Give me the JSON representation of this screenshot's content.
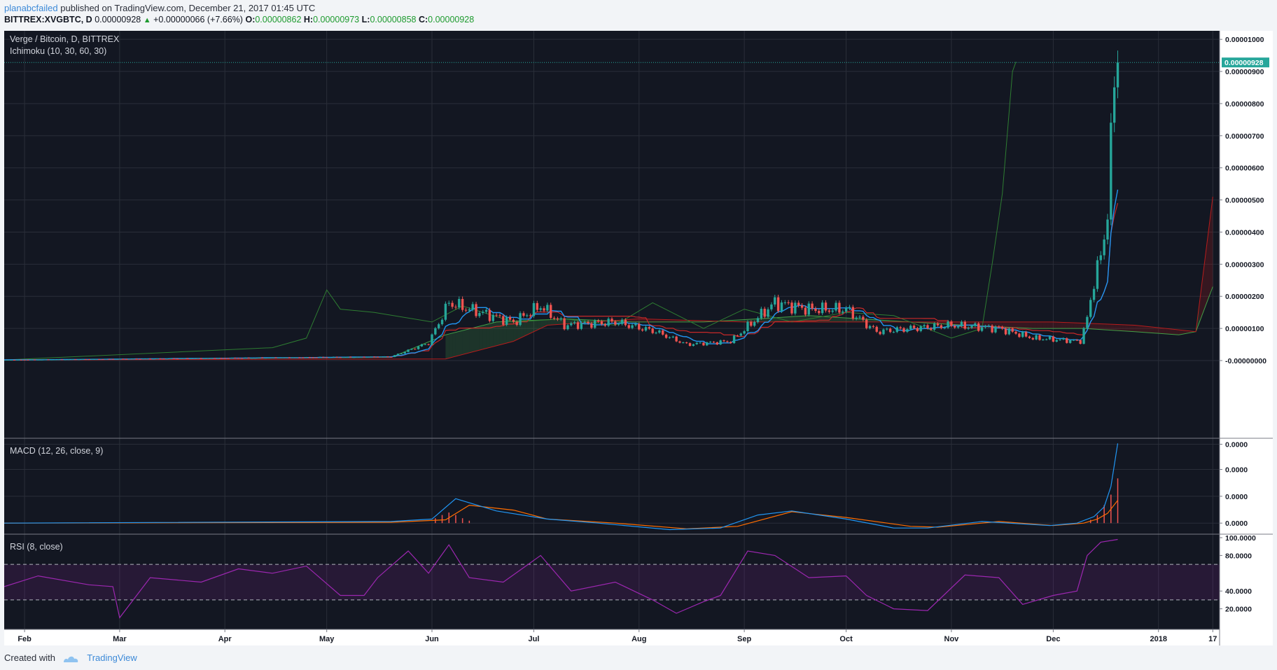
{
  "header": {
    "author": "planabcfailed",
    "published": "published on TradingView.com, December 21, 2017 01:45 UTC",
    "symbol": "BITTREX:XVGBTC, D",
    "last": "0.00000928",
    "change": "+0.00000066 (+7.66%)",
    "o_label": "O:",
    "o_value": "0.00000862",
    "h_label": "H:",
    "h_value": "0.00000973",
    "l_label": "L:",
    "l_value": "0.00000858",
    "c_label": "C:",
    "c_value": "0.00000928"
  },
  "footer": {
    "created": "Created with",
    "brand": "TradingView"
  },
  "colors": {
    "background": "#131722",
    "grid": "#2a2e39",
    "up": "#26a69a",
    "down": "#ef5350",
    "tenkan": "#2196f3",
    "kijun": "#c62828",
    "lead_a": "#43a047",
    "lead_b": "#b71c1c",
    "lagging": "#2e7d32",
    "macd": "#2196f3",
    "signal": "#ff6d00",
    "rsi": "#9c27b0",
    "price_tag": "#26a69a"
  },
  "chart_data": [
    {
      "id": "price",
      "type": "candlestick",
      "title": "Verge / Bitcoin, D, BITTREX",
      "indicator": "Ichimoku (10, 30, 60, 30)",
      "ylim": [
        0,
        1.02e-05
      ],
      "yticks": [
        "-0.00000000",
        "0.00000100",
        "0.00000200",
        "0.00000300",
        "0.00000400",
        "0.00000500",
        "0.00000600",
        "0.00000700",
        "0.00000800",
        "0.00000900",
        "0.00001000"
      ],
      "ytick_values": [
        0,
        1e-06,
        2e-06,
        3e-06,
        4e-06,
        5e-06,
        6e-06,
        7e-06,
        8e-06,
        9e-06,
        1e-05
      ],
      "last_price_label": "0.00000928",
      "last_price": 9.28e-06,
      "anchors": {
        "dates": [
          "2017-01-26",
          "2017-05-20",
          "2017-05-31",
          "2017-06-06",
          "2017-06-12",
          "2017-06-25",
          "2017-07-03",
          "2017-07-10",
          "2017-07-25",
          "2017-08-06",
          "2017-08-15",
          "2017-08-28",
          "2017-09-10",
          "2017-09-20",
          "2017-10-01",
          "2017-10-10",
          "2017-10-20",
          "2017-11-01",
          "2017-11-15",
          "2017-11-25",
          "2017-12-09",
          "2017-12-11",
          "2017-12-13",
          "2017-12-15",
          "2017-12-17",
          "2017-12-19",
          "2017-12-20"
        ],
        "closes": [
          2e-08,
          1.2e-07,
          5.5e-07,
          1.8e-06,
          1.6e-06,
          1.2e-06,
          1.7e-06,
          1.1e-06,
          1.2e-06,
          9e-07,
          5e-07,
          6e-07,
          1.8e-06,
          1.6e-06,
          1.6e-06,
          9e-07,
          1e-06,
          1.1e-06,
          1e-06,
          7e-07,
          6e-07,
          1.3e-06,
          2.5e-06,
          3.2e-06,
          4.7e-06,
          8.6e-06,
          9.28e-06
        ]
      },
      "ichimoku": {
        "lead_a": {
          "dates": [
            "2017-01-26",
            "2017-05-20",
            "2017-06-05",
            "2017-06-20",
            "2017-07-10",
            "2017-07-30",
            "2017-08-20",
            "2017-09-05",
            "2017-09-20",
            "2017-10-05",
            "2017-10-20",
            "2017-11-05",
            "2017-11-25",
            "2017-12-10",
            "2017-12-25",
            "2018-01-07",
            "2018-01-12",
            "2018-01-17"
          ],
          "values": [
            2e-08,
            1e-07,
            8e-07,
            1.2e-06,
            1.3e-06,
            1.2e-06,
            1.2e-06,
            1.3e-06,
            1.4e-06,
            1.3e-06,
            1.2e-06,
            1.1e-06,
            1e-06,
            1e-06,
            9e-07,
            8e-07,
            9e-07,
            2.3e-06
          ]
        },
        "lead_b": {
          "dates": [
            "2017-01-26",
            "2017-06-05",
            "2017-06-25",
            "2017-07-05",
            "2017-08-01",
            "2017-09-01",
            "2017-10-01",
            "2017-11-01",
            "2017-12-01",
            "2017-12-25",
            "2018-01-12",
            "2018-01-17"
          ],
          "values": [
            2e-08,
            5e-08,
            6e-07,
            1.1e-06,
            1.3e-06,
            1.2e-06,
            1.2e-06,
            1.2e-06,
            1.2e-06,
            1.1e-06,
            9e-07,
            5.1e-06
          ]
        },
        "lagging": {
          "dates": [
            "2017-01-26",
            "2017-04-15",
            "2017-04-25",
            "2017-05-01",
            "2017-05-05",
            "2017-05-15",
            "2017-06-01",
            "2017-06-10",
            "2017-06-25",
            "2017-07-10",
            "2017-07-25",
            "2017-08-05",
            "2017-08-20",
            "2017-09-01",
            "2017-09-15",
            "2017-10-01",
            "2017-10-15",
            "2017-11-01",
            "2017-11-10",
            "2017-11-13",
            "2017-11-16",
            "2017-11-19",
            "2017-11-20"
          ],
          "values": [
            2e-08,
            4e-07,
            7e-07,
            2.2e-06,
            1.6e-06,
            1.5e-06,
            1.2e-06,
            1.7e-06,
            1.2e-06,
            1.3e-06,
            1.1e-06,
            1.8e-06,
            1e-06,
            1.6e-06,
            1.2e-06,
            1.5e-06,
            1.4e-06,
            7e-07,
            1e-06,
            3e-06,
            5.2e-06,
            9e-06,
            9.3e-06
          ]
        }
      }
    },
    {
      "id": "macd",
      "type": "line",
      "title": "MACD (12, 26, close, 9)",
      "yticks": [
        "0.0000",
        "0.0000",
        "0.0000",
        "0.0000"
      ],
      "ylim": [
        -0.05,
        1.0
      ],
      "macd": {
        "dates": [
          "2017-01-26",
          "2017-05-20",
          "2017-06-01",
          "2017-06-08",
          "2017-06-20",
          "2017-07-05",
          "2017-07-20",
          "2017-08-10",
          "2017-08-25",
          "2017-09-05",
          "2017-09-15",
          "2017-10-01",
          "2017-10-15",
          "2017-10-25",
          "2017-11-10",
          "2017-11-30",
          "2017-12-08",
          "2017-12-13",
          "2017-12-16",
          "2017-12-18",
          "2017-12-20"
        ],
        "values": [
          0,
          0.02,
          0.05,
          0.3,
          0.15,
          0.05,
          0.0,
          -0.08,
          -0.06,
          0.1,
          0.15,
          0.05,
          -0.06,
          -0.06,
          0.02,
          -0.03,
          0.0,
          0.08,
          0.2,
          0.45,
          0.98
        ]
      },
      "signal": {
        "dates": [
          "2017-01-26",
          "2017-05-20",
          "2017-06-05",
          "2017-06-12",
          "2017-06-25",
          "2017-07-05",
          "2017-07-25",
          "2017-08-15",
          "2017-08-30",
          "2017-09-15",
          "2017-10-01",
          "2017-10-20",
          "2017-10-28",
          "2017-11-15",
          "2017-12-01",
          "2017-12-10",
          "2017-12-14",
          "2017-12-17",
          "2017-12-20"
        ],
        "values": [
          0,
          0.01,
          0.04,
          0.22,
          0.16,
          0.05,
          0.0,
          -0.07,
          -0.04,
          0.14,
          0.07,
          -0.04,
          -0.05,
          0.02,
          -0.03,
          0.0,
          0.05,
          0.12,
          0.28
        ]
      },
      "histogram": {
        "dates": [
          "2017-06-02",
          "2017-06-04",
          "2017-06-06",
          "2017-06-08",
          "2017-06-10",
          "2017-06-12",
          "2017-12-12",
          "2017-12-14",
          "2017-12-16",
          "2017-12-18",
          "2017-12-20"
        ],
        "values": [
          0.06,
          0.1,
          0.13,
          0.1,
          0.06,
          0.03,
          0.04,
          0.1,
          0.22,
          0.35,
          0.55
        ]
      }
    },
    {
      "id": "rsi",
      "type": "line",
      "title": "RSI (8, close)",
      "ylim": [
        0,
        100
      ],
      "yticks": [
        "20.0000",
        "40.0000",
        "80.0000",
        "100.0000"
      ],
      "ytick_values": [
        20,
        40,
        80,
        100
      ],
      "band": [
        30,
        70
      ],
      "rsi": {
        "dates": [
          "2017-01-26",
          "2017-02-05",
          "2017-02-20",
          "2017-02-27",
          "2017-03-01",
          "2017-03-10",
          "2017-03-25",
          "2017-04-05",
          "2017-04-15",
          "2017-04-25",
          "2017-05-05",
          "2017-05-12",
          "2017-05-16",
          "2017-05-25",
          "2017-05-31",
          "2017-06-06",
          "2017-06-12",
          "2017-06-22",
          "2017-07-03",
          "2017-07-12",
          "2017-07-25",
          "2017-08-05",
          "2017-08-12",
          "2017-08-20",
          "2017-08-25",
          "2017-09-02",
          "2017-09-10",
          "2017-09-20",
          "2017-10-01",
          "2017-10-07",
          "2017-10-15",
          "2017-10-25",
          "2017-11-05",
          "2017-11-15",
          "2017-11-22",
          "2017-12-01",
          "2017-12-08",
          "2017-12-11",
          "2017-12-15",
          "2017-12-20"
        ],
        "values": [
          45,
          57,
          47,
          45,
          10,
          55,
          50,
          65,
          60,
          68,
          35,
          35,
          55,
          85,
          60,
          92,
          55,
          50,
          80,
          40,
          50,
          30,
          15,
          28,
          35,
          85,
          80,
          55,
          57,
          35,
          20,
          18,
          58,
          55,
          25,
          35,
          40,
          80,
          95,
          98
        ]
      }
    }
  ],
  "xaxis": {
    "ticks": [
      "Feb",
      "Mar",
      "Apr",
      "May",
      "Jun",
      "Jul",
      "Aug",
      "Sep",
      "Oct",
      "Nov",
      "Dec",
      "2018",
      "17"
    ],
    "tick_dates": [
      "2017-02-01",
      "2017-03-01",
      "2017-04-01",
      "2017-05-01",
      "2017-06-01",
      "2017-07-01",
      "2017-08-01",
      "2017-09-01",
      "2017-10-01",
      "2017-11-01",
      "2017-12-01",
      "2018-01-01",
      "2018-01-17"
    ]
  }
}
